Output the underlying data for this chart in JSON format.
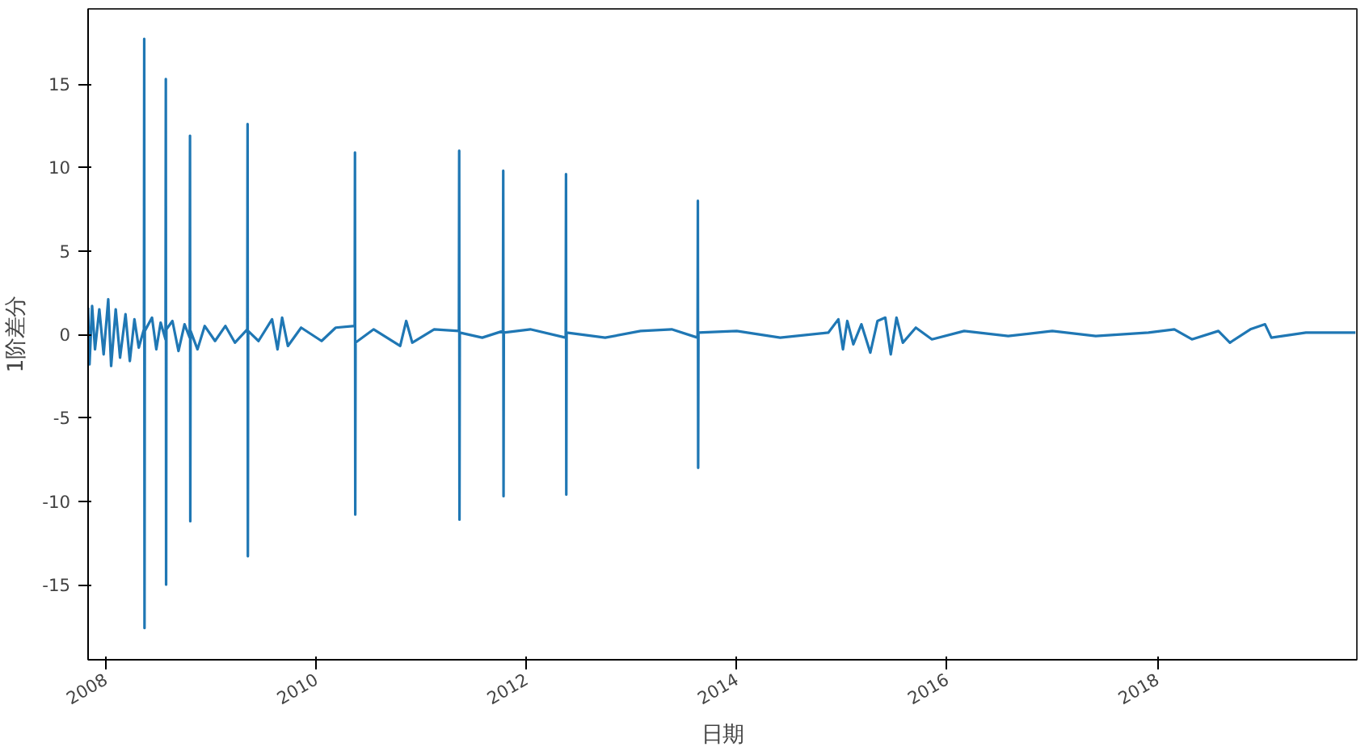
{
  "chart_data": {
    "type": "line",
    "xlabel": "日期",
    "ylabel": "1阶差分",
    "grid": false,
    "xlim": [
      "2007-11-01",
      "2019-11-25"
    ],
    "ylim": [
      -19.5,
      19.5
    ],
    "xticks": [
      "2008",
      "2010",
      "2012",
      "2014",
      "2016",
      "2018"
    ],
    "yticks": [
      -15,
      -10,
      -5,
      0,
      5,
      10,
      15
    ],
    "series": [
      {
        "color": "#1f77b4",
        "x": [
          "2007-11-01",
          "2007-11-06",
          "2007-11-15",
          "2007-11-25",
          "2007-12-10",
          "2007-12-25",
          "2008-01-10",
          "2008-01-20",
          "2008-02-05",
          "2008-02-20",
          "2008-03-10",
          "2008-03-25",
          "2008-04-10",
          "2008-04-25",
          "2008-05-13",
          "2008-05-14",
          "2008-05-15",
          "2008-05-16",
          "2008-06-10",
          "2008-06-25",
          "2008-07-10",
          "2008-07-27",
          "2008-07-28",
          "2008-07-29",
          "2008-07-30",
          "2008-08-20",
          "2008-09-10",
          "2008-10-01",
          "2008-10-19",
          "2008-10-20",
          "2008-10-21",
          "2008-10-22",
          "2008-11-15",
          "2008-12-10",
          "2009-01-15",
          "2009-02-20",
          "2009-03-25",
          "2009-05-07",
          "2009-05-08",
          "2009-05-09",
          "2009-05-10",
          "2009-06-15",
          "2009-08-01",
          "2009-08-20",
          "2009-09-05",
          "2009-09-25",
          "2009-11-10",
          "2010-01-20",
          "2010-03-10",
          "2010-05-15",
          "2010-05-16",
          "2010-05-17",
          "2010-05-18",
          "2010-07-20",
          "2010-10-20",
          "2010-11-10",
          "2010-12-01",
          "2011-02-15",
          "2011-05-12",
          "2011-05-13",
          "2011-05-14",
          "2011-05-15",
          "2011-08-01",
          "2011-10-12",
          "2011-10-13",
          "2011-10-14",
          "2011-10-15",
          "2012-01-15",
          "2012-05-17",
          "2012-05-18",
          "2012-05-19",
          "2012-05-20",
          "2012-10-01",
          "2013-02-01",
          "2013-05-20",
          "2013-08-18",
          "2013-08-19",
          "2013-08-20",
          "2013-08-21",
          "2014-01-01",
          "2014-06-01",
          "2014-11-15",
          "2014-12-20",
          "2015-01-05",
          "2015-01-20",
          "2015-02-10",
          "2015-03-10",
          "2015-04-10",
          "2015-05-05",
          "2015-06-01",
          "2015-06-20",
          "2015-07-10",
          "2015-08-01",
          "2015-09-15",
          "2015-11-10",
          "2016-03-01",
          "2016-08-01",
          "2017-01-01",
          "2017-06-01",
          "2017-12-01",
          "2018-03-01",
          "2018-05-01",
          "2018-08-01",
          "2018-09-10",
          "2018-11-20",
          "2019-01-10",
          "2019-02-01",
          "2019-06-01",
          "2019-11-20"
        ],
        "values": [
          1.6,
          -1.8,
          1.7,
          -0.9,
          1.5,
          -1.2,
          2.1,
          -1.9,
          1.5,
          -1.4,
          1.2,
          -1.6,
          0.9,
          -0.8,
          0.3,
          17.7,
          -17.6,
          0.2,
          1.0,
          -0.9,
          0.7,
          -0.3,
          15.3,
          -15.0,
          0.3,
          0.8,
          -1.0,
          0.6,
          -0.2,
          11.9,
          -11.2,
          0.2,
          -0.9,
          0.5,
          -0.4,
          0.5,
          -0.5,
          0.3,
          12.6,
          -13.3,
          0.2,
          -0.4,
          0.9,
          -0.9,
          1.0,
          -0.7,
          0.4,
          -0.4,
          0.4,
          0.5,
          10.9,
          -10.8,
          -0.5,
          0.3,
          -0.7,
          0.8,
          -0.5,
          0.3,
          0.2,
          11.0,
          -11.1,
          0.1,
          -0.2,
          0.2,
          9.8,
          -9.7,
          0.1,
          0.3,
          -0.2,
          9.6,
          -9.6,
          0.1,
          -0.2,
          0.2,
          0.3,
          -0.2,
          8.0,
          -8.0,
          0.1,
          0.2,
          -0.2,
          0.1,
          0.9,
          -0.9,
          0.8,
          -0.6,
          0.6,
          -1.1,
          0.8,
          1.0,
          -1.2,
          1.0,
          -0.5,
          0.4,
          -0.3,
          0.2,
          -0.1,
          0.2,
          -0.1,
          0.1,
          0.3,
          -0.3,
          0.2,
          -0.5,
          0.3,
          0.6,
          -0.2,
          0.1,
          0.1
        ]
      }
    ]
  }
}
